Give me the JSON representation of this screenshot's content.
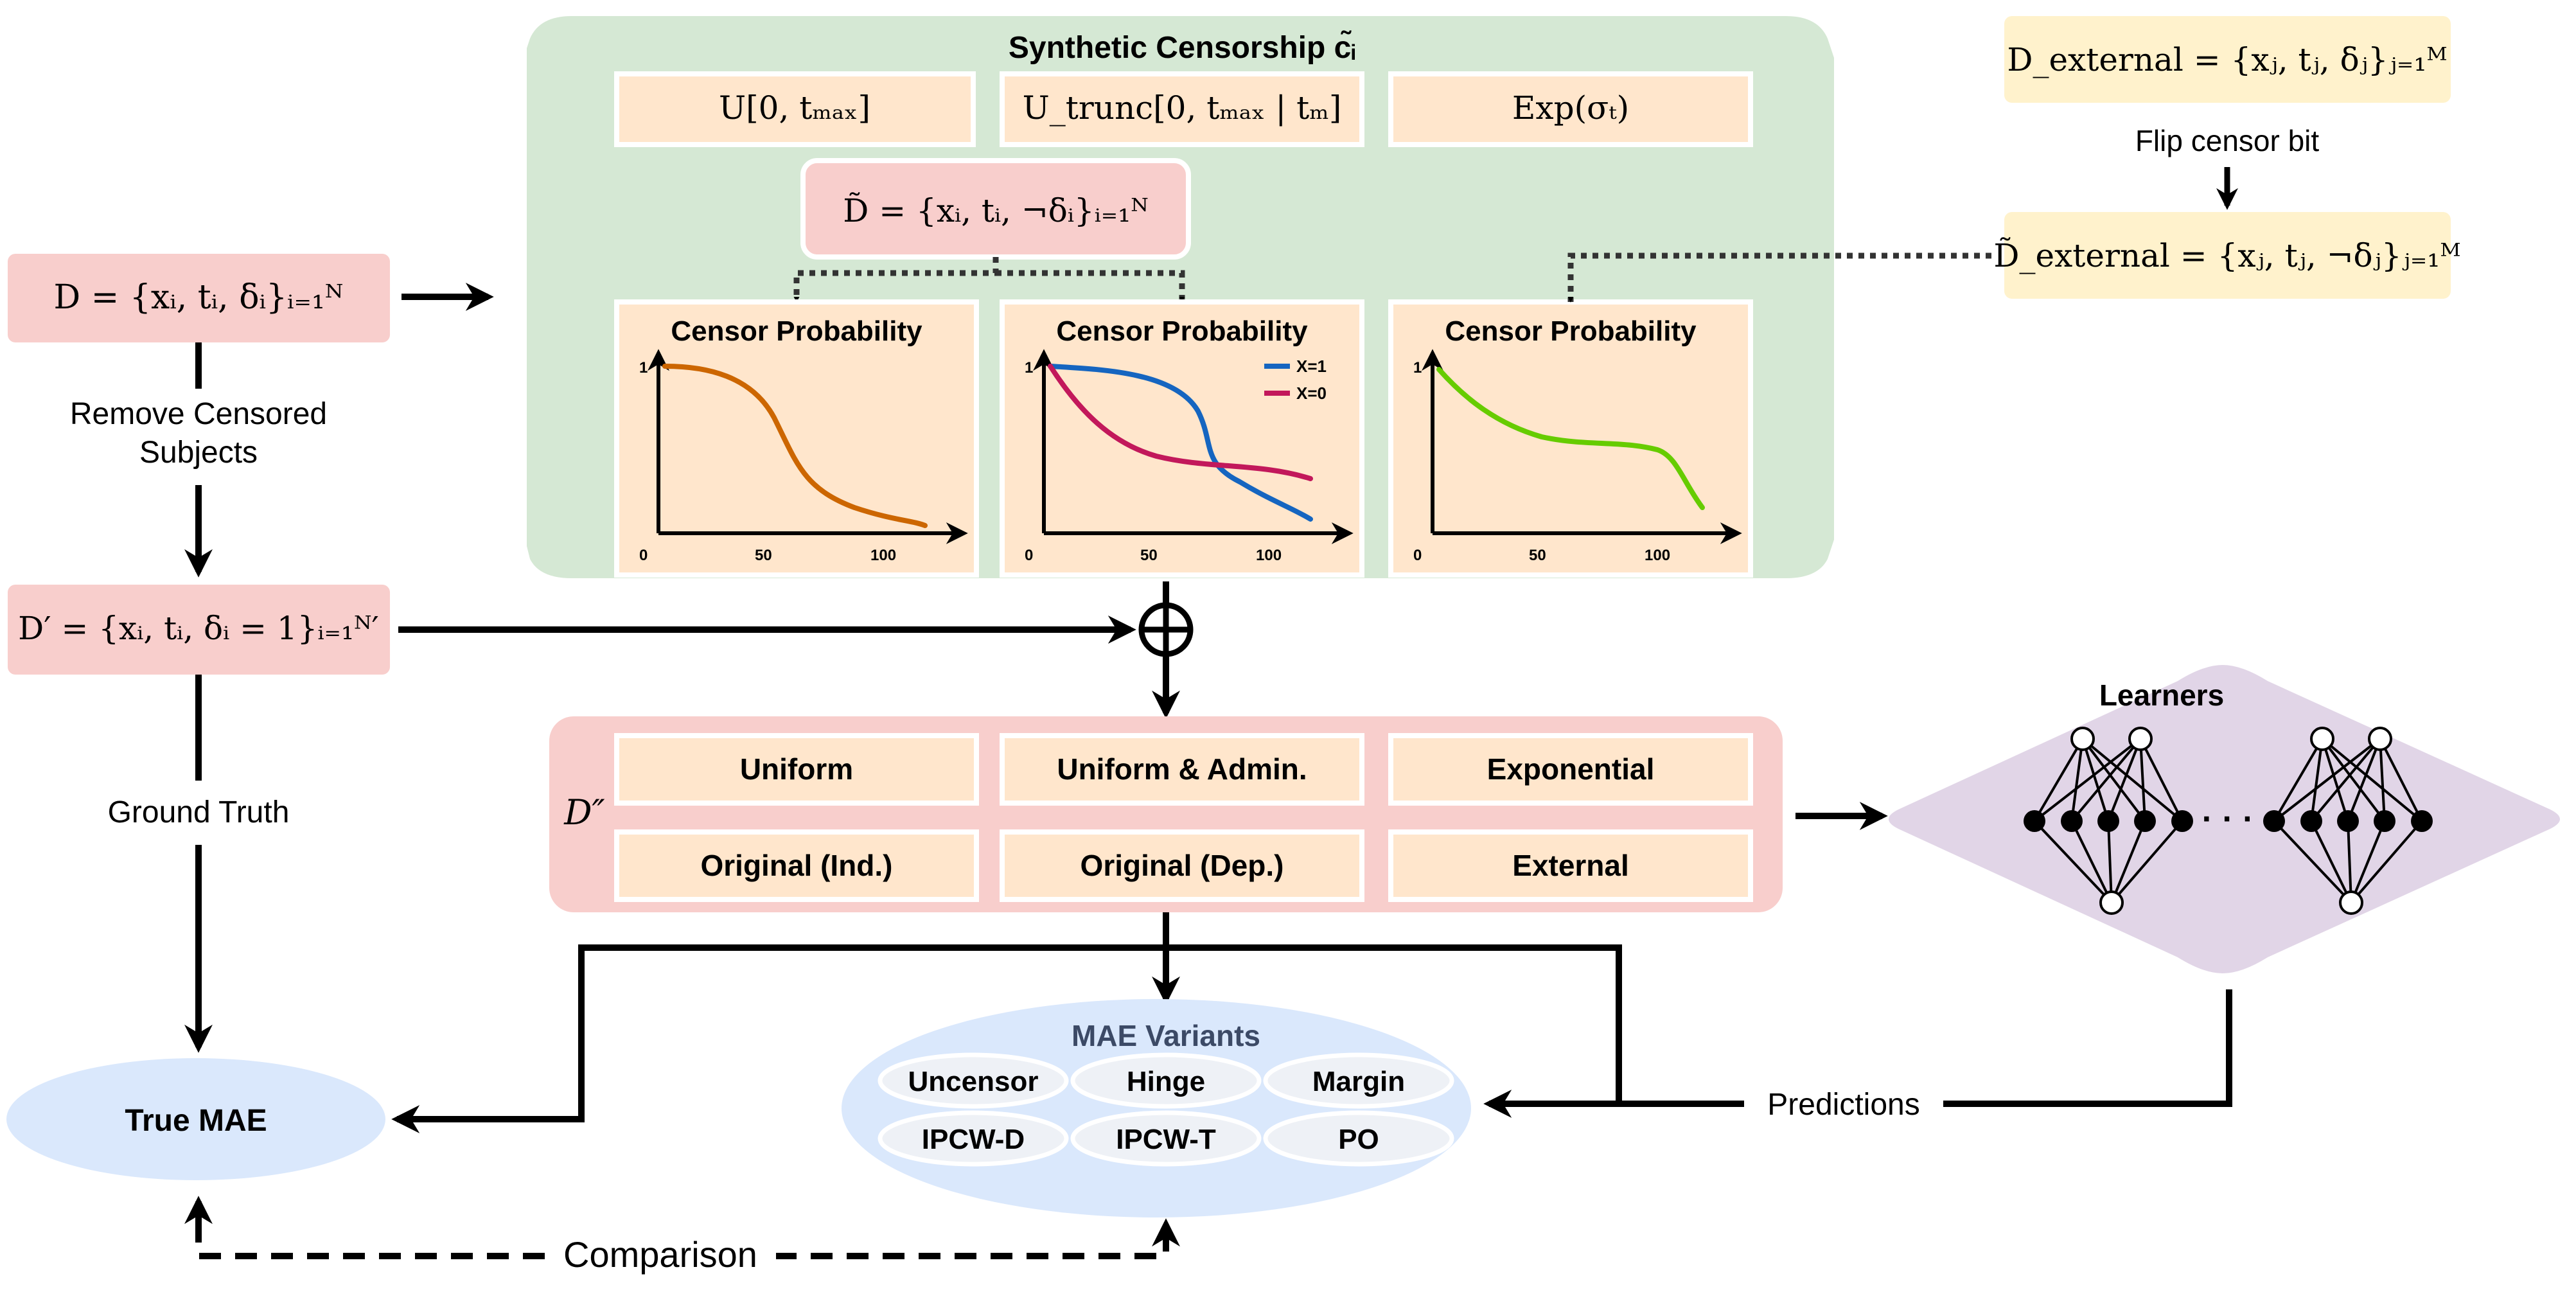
{
  "synthetic": {
    "title": "Synthetic Censorship c̃ᵢ",
    "dist": [
      "U[0, tₘₐₓ]",
      "U_trunc[0, tₘₐₓ | tₘ]",
      "Exp(σₜ)"
    ],
    "tilde_d": "D̃ = {xᵢ, tᵢ, ¬δᵢ}ᵢ₌₁ᴺ",
    "panels": [
      {
        "title": "Censor Probability",
        "ytick": "1",
        "xticks": [
          "0",
          "50",
          "100"
        ]
      },
      {
        "title": "Censor Probability",
        "ytick": "1",
        "xticks": [
          "0",
          "50",
          "100"
        ],
        "legend": [
          "X=1",
          "X=0"
        ]
      },
      {
        "title": "Censor Probability",
        "ytick": "1",
        "xticks": [
          "0",
          "50",
          "100"
        ]
      }
    ]
  },
  "external": {
    "d_ext": "D_external = {xⱼ, tⱼ, δⱼ}ⱼ₌₁ᴹ",
    "flip_label": "Flip censor bit",
    "d_ext_tilde": "D̃_external = {xⱼ, tⱼ, ¬δⱼ}ⱼ₌₁ᴹ"
  },
  "left": {
    "d_box": "D = {xᵢ, tᵢ, δᵢ}ᵢ₌₁ᴺ",
    "remove_label": [
      "Remove Censored",
      "Subjects"
    ],
    "d_prime": "D′ = {xᵢ, tᵢ, δᵢ = 1}ᵢ₌₁ᴺ′",
    "ground_truth": "Ground Truth",
    "true_mae": "True MAE"
  },
  "combined": {
    "symbol": "D″",
    "items": [
      "Uniform",
      "Uniform & Admin.",
      "Exponential",
      "Original (Ind.)",
      "Original (Dep.)",
      "External"
    ]
  },
  "learners": {
    "title": "Learners",
    "dots": "· · ·"
  },
  "mae": {
    "title": "MAE Variants",
    "items": [
      "Uncensor",
      "Hinge",
      "Margin",
      "IPCW-D",
      "IPCW-T",
      "PO"
    ]
  },
  "edges": {
    "predictions": "Predictions",
    "comparison": "Comparison"
  },
  "colors": {
    "green_bg": "#d5e8d4",
    "peach": "#ffe6cc",
    "pink": "#f8cecc",
    "yellow": "#fff2cc",
    "blue_ellipse": "#dae8fc",
    "purple": "#e1d5e7",
    "curve_orange": "#cc6600",
    "curve_blue": "#1565c0",
    "curve_magenta": "#c2185b",
    "curve_green": "#66cc00"
  }
}
